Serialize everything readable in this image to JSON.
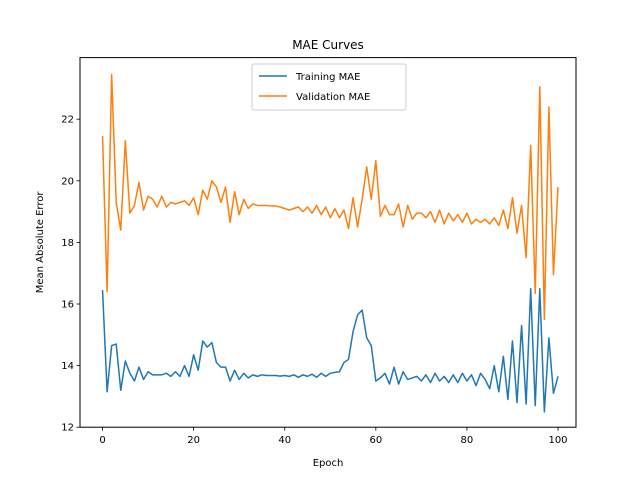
{
  "chart_data": {
    "type": "line",
    "title": "MAE Curves",
    "xlabel": "Epoch",
    "ylabel": "Mean Absolute Error",
    "xlim": [
      -4.95,
      103.95
    ],
    "ylim": [
      12.0,
      24.0
    ],
    "xticks": [
      0,
      20,
      40,
      60,
      80,
      100
    ],
    "yticks": [
      12,
      14,
      16,
      18,
      20,
      22
    ],
    "xtick_labels": [
      "0",
      "20",
      "40",
      "60",
      "80",
      "100"
    ],
    "ytick_labels": [
      "12",
      "14",
      "16",
      "18",
      "20",
      "22"
    ],
    "legend_position": "top-center",
    "grid": false,
    "series": [
      {
        "name": "Training MAE",
        "color": "#1f77b4",
        "y": [
          16.45,
          13.15,
          14.65,
          14.7,
          13.2,
          14.15,
          13.75,
          13.5,
          13.95,
          13.55,
          13.8,
          13.7,
          13.7,
          13.7,
          13.75,
          13.65,
          13.8,
          13.65,
          14.0,
          13.65,
          14.35,
          13.85,
          14.8,
          14.6,
          14.75,
          14.1,
          13.95,
          13.95,
          13.5,
          13.85,
          13.55,
          13.75,
          13.6,
          13.7,
          13.65,
          13.7,
          13.68,
          13.68,
          13.68,
          13.66,
          13.68,
          13.65,
          13.7,
          13.62,
          13.7,
          13.65,
          13.72,
          13.62,
          13.75,
          13.65,
          13.75,
          13.78,
          13.8,
          14.1,
          14.2,
          15.1,
          15.65,
          15.8,
          14.9,
          14.65,
          13.5,
          13.6,
          13.75,
          13.4,
          13.95,
          13.4,
          13.8,
          13.55,
          13.6,
          13.65,
          13.5,
          13.7,
          13.45,
          13.75,
          13.5,
          13.65,
          13.45,
          13.7,
          13.45,
          13.75,
          13.5,
          13.7,
          13.35,
          13.75,
          13.55,
          13.25,
          14.0,
          13.15,
          14.3,
          12.9,
          14.8,
          12.8,
          15.3,
          12.75,
          16.5,
          12.7,
          16.5,
          12.5,
          14.9,
          13.1,
          13.65
        ]
      },
      {
        "name": "Validation MAE",
        "color": "#ff7f0e",
        "y": [
          21.45,
          16.4,
          23.45,
          19.3,
          18.4,
          21.3,
          18.95,
          19.2,
          19.95,
          19.05,
          19.5,
          19.4,
          19.15,
          19.5,
          19.15,
          19.3,
          19.25,
          19.3,
          19.35,
          19.2,
          19.45,
          18.9,
          19.7,
          19.4,
          20.0,
          19.8,
          19.3,
          19.8,
          18.65,
          19.65,
          18.9,
          19.4,
          19.1,
          19.25,
          19.2,
          19.2,
          19.2,
          19.18,
          19.18,
          19.15,
          19.1,
          19.05,
          19.1,
          19.15,
          19.0,
          19.15,
          18.95,
          19.2,
          18.9,
          19.15,
          18.8,
          19.1,
          18.8,
          19.05,
          18.45,
          19.45,
          18.5,
          19.4,
          20.45,
          19.4,
          20.65,
          18.85,
          19.2,
          18.9,
          18.9,
          19.25,
          18.5,
          19.2,
          18.75,
          18.95,
          18.95,
          18.8,
          19.0,
          18.65,
          19.05,
          18.6,
          18.95,
          18.7,
          18.9,
          18.65,
          18.95,
          18.6,
          18.75,
          18.65,
          18.75,
          18.6,
          18.8,
          18.55,
          19.05,
          18.45,
          19.45,
          18.3,
          19.2,
          17.5,
          21.15,
          16.35,
          23.05,
          15.5,
          22.4,
          16.95,
          19.8
        ]
      }
    ]
  }
}
